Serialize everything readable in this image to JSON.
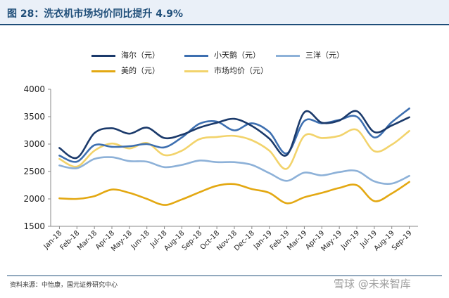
{
  "title": "图 28：洗衣机市场均价同比提升 4.9%",
  "source": "资料来源：中怡康，国元证券研究中心",
  "watermark": "雪球 @未来智库",
  "chart_data": {
    "type": "line",
    "categories": [
      "Jan-18",
      "Feb-18",
      "Mar-18",
      "Apr-18",
      "May-18",
      "Jun-18",
      "Jul-18",
      "Aug-18",
      "Sep-18",
      "Oct-18",
      "Nov-18",
      "Dec-18",
      "Jan-19",
      "Feb-19",
      "Mar-19",
      "Apr-19",
      "May-19",
      "Jun-19",
      "Jul-19",
      "Aug-19",
      "Sep-19"
    ],
    "ylim": [
      1500,
      4000
    ],
    "yticks": [
      1500,
      2000,
      2500,
      3000,
      3500,
      4000
    ],
    "legend_placement": "top",
    "series": [
      {
        "name": "海尔（元）",
        "color": "#1b3a6b",
        "values": [
          2930,
          2750,
          3200,
          3290,
          3190,
          3300,
          3110,
          3170,
          3300,
          3390,
          3460,
          3330,
          3100,
          2800,
          3580,
          3390,
          3430,
          3600,
          3220,
          3340,
          3490
        ]
      },
      {
        "name": "小天鹅（元）",
        "color": "#3d6fb0",
        "values": [
          2790,
          2680,
          2980,
          2950,
          2960,
          3000,
          2940,
          3120,
          3370,
          3410,
          3250,
          3380,
          3220,
          2830,
          3420,
          3380,
          3440,
          3500,
          3120,
          3400,
          3650
        ]
      },
      {
        "name": "三洋（元）",
        "color": "#8db1d8",
        "values": [
          2610,
          2560,
          2730,
          2760,
          2690,
          2680,
          2580,
          2620,
          2700,
          2670,
          2670,
          2620,
          2470,
          2330,
          2480,
          2430,
          2490,
          2510,
          2320,
          2280,
          2420
        ]
      },
      {
        "name": "美的（元）",
        "color": "#e3a812",
        "values": [
          2010,
          2000,
          2050,
          2170,
          2110,
          2000,
          1890,
          1990,
          2120,
          2240,
          2270,
          2180,
          2110,
          1920,
          2030,
          2110,
          2200,
          2250,
          1960,
          2100,
          2310
        ]
      },
      {
        "name": "市场均价（元）",
        "color": "#f2d36b",
        "values": [
          2730,
          2590,
          2880,
          3010,
          2920,
          3020,
          2800,
          2880,
          3090,
          3130,
          3150,
          3070,
          2880,
          2550,
          3150,
          3110,
          3150,
          3260,
          2870,
          2990,
          3240
        ]
      }
    ]
  }
}
